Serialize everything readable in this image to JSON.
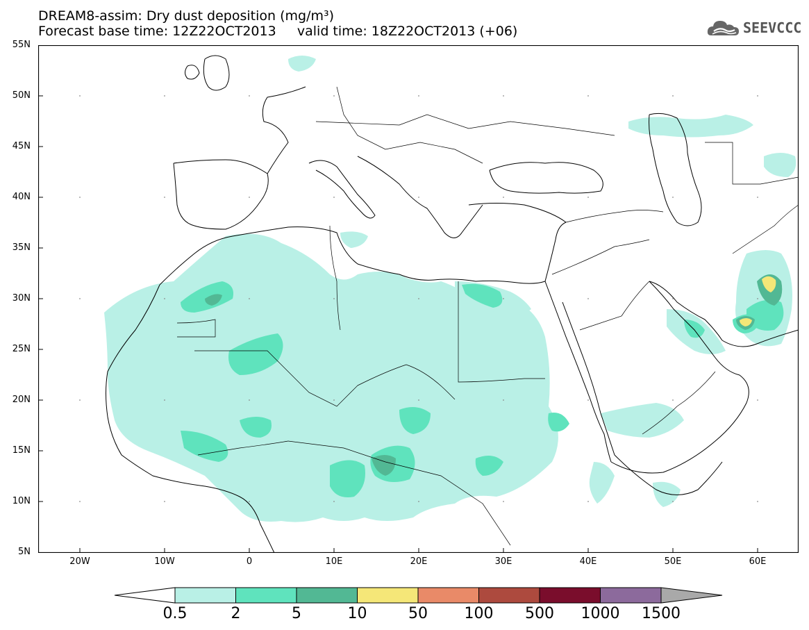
{
  "header": {
    "title_line1": "DREAM8-assim: Dry dust deposition (mg/m³)",
    "base_time": "Forecast base time: 12Z22OCT2013",
    "valid_time": "valid time: 18Z22OCT2013 (+06)"
  },
  "logo": {
    "text": "SEEVCCC",
    "icon": "cloud-icon"
  },
  "map": {
    "lat_labels": [
      "55N",
      "50N",
      "45N",
      "40N",
      "35N",
      "30N",
      "25N",
      "20N",
      "15N",
      "10N",
      "5N"
    ],
    "lon_labels": [
      "20W",
      "10W",
      "0",
      "10E",
      "20E",
      "30E",
      "40E",
      "50E",
      "60E"
    ],
    "lon_range": [
      -25,
      65
    ],
    "lat_range": [
      5,
      55
    ]
  },
  "colorbar": {
    "colors": [
      "#b9f0e6",
      "#5fe3bd",
      "#52b894",
      "#f5e778",
      "#e98a68",
      "#ad4a3e",
      "#7a0d2c",
      "#8c6a9c"
    ],
    "labels": [
      "0.5",
      "2",
      "5",
      "10",
      "50",
      "100",
      "500",
      "1000",
      "1500"
    ],
    "under_color": "#ffffff",
    "over_color": "#a9a9a9"
  }
}
